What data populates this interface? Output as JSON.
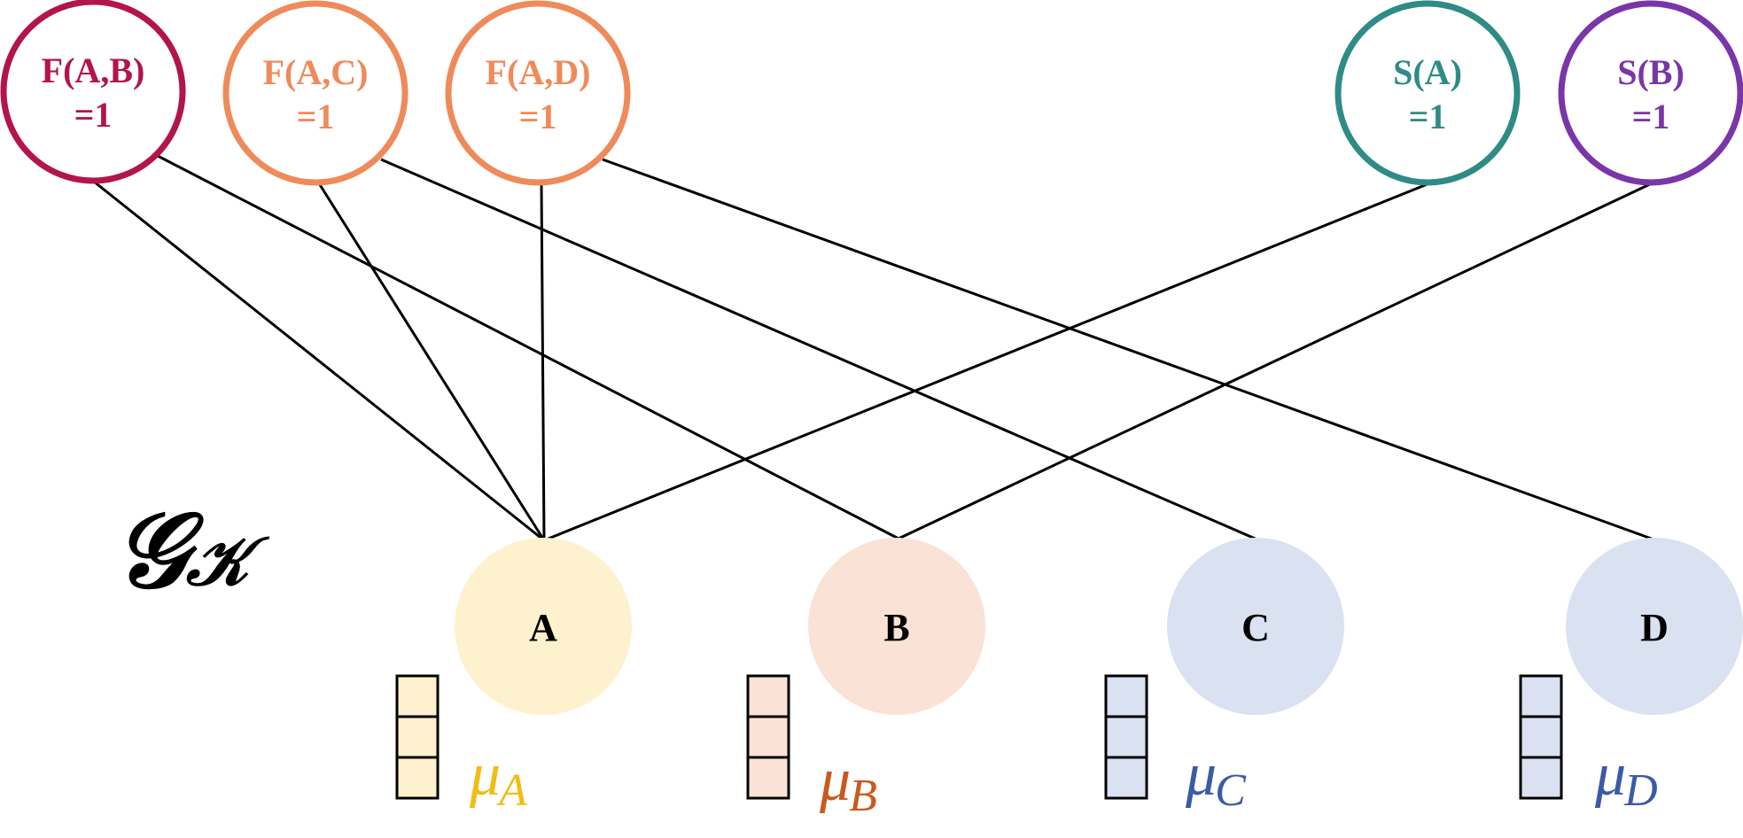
{
  "graph_label": {
    "main": "𝒢",
    "sub": "𝒦"
  },
  "factors": [
    {
      "id": "fab",
      "line1": "F(A,B)",
      "line2": "=1",
      "color": "#b2154a"
    },
    {
      "id": "fac",
      "line1": "F(A,C)",
      "line2": "=1",
      "color": "#ef8a5a"
    },
    {
      "id": "fad",
      "line1": "F(A,D)",
      "line2": "=1",
      "color": "#ef8a5a"
    },
    {
      "id": "sa",
      "line1": "S(A)",
      "line2": "=1",
      "color": "#2e8b86"
    },
    {
      "id": "sb",
      "line1": "S(B)",
      "line2": "=1",
      "color": "#7a35a8"
    }
  ],
  "variables": [
    {
      "id": "A",
      "label": "A",
      "fill": "#fef1cd",
      "mu": "μ",
      "mu_sub": "A",
      "mu_color": "#f0bd14"
    },
    {
      "id": "B",
      "label": "B",
      "fill": "#fbe2d6",
      "mu": "μ",
      "mu_sub": "B",
      "mu_color": "#c85a1e"
    },
    {
      "id": "C",
      "label": "C",
      "fill": "#dae1f1",
      "mu": "μ",
      "mu_sub": "C",
      "mu_color": "#3a5ba6"
    },
    {
      "id": "D",
      "label": "D",
      "fill": "#dae1f1",
      "mu": "μ",
      "mu_sub": "D",
      "mu_color": "#3a5ba6"
    }
  ],
  "edges": [
    {
      "factor": "fab",
      "variable": "A"
    },
    {
      "factor": "fab",
      "variable": "B"
    },
    {
      "factor": "fac",
      "variable": "A"
    },
    {
      "factor": "fac",
      "variable": "C"
    },
    {
      "factor": "fad",
      "variable": "A"
    },
    {
      "factor": "fad",
      "variable": "D"
    },
    {
      "factor": "sa",
      "variable": "A"
    },
    {
      "factor": "sb",
      "variable": "B"
    }
  ]
}
